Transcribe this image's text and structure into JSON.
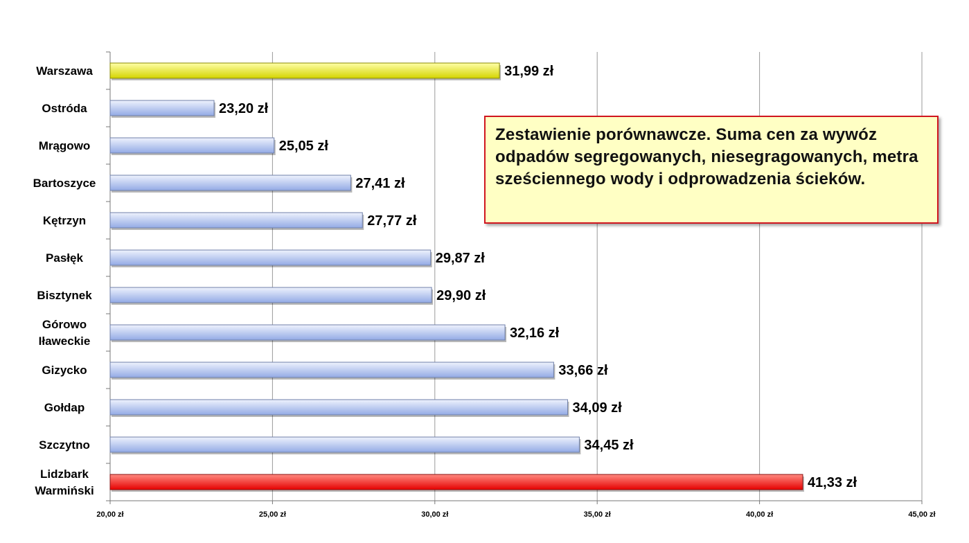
{
  "chart_data": {
    "type": "bar",
    "orientation": "horizontal",
    "categories": [
      "Warszawa",
      "Ostróda",
      "Mrągowo",
      "Bartoszyce",
      "Kętrzyn",
      "Pasłęk",
      "Bisztynek",
      "Górowo Iławeckie",
      "Gizycko",
      "Gołdap",
      "Szczytno",
      "Lidzbark Warmiński"
    ],
    "category_lines": [
      [
        "Warszawa"
      ],
      [
        "Ostróda"
      ],
      [
        "Mrągowo"
      ],
      [
        "Bartoszyce"
      ],
      [
        "Kętrzyn"
      ],
      [
        "Pasłęk"
      ],
      [
        "Bisztynek"
      ],
      [
        "Górowo",
        "Iławeckie"
      ],
      [
        "Gizycko"
      ],
      [
        "Gołdap"
      ],
      [
        "Szczytno"
      ],
      [
        "Lidzbark",
        "Warmiński"
      ]
    ],
    "values": [
      31.99,
      23.2,
      25.05,
      27.41,
      27.77,
      29.87,
      29.9,
      32.16,
      33.66,
      34.09,
      34.45,
      41.33
    ],
    "value_labels": [
      "31,99 zł",
      "23,20 zł",
      "25,05 zł",
      "27,41 zł",
      "27,77 zł",
      "29,87 zł",
      "29,90 zł",
      "32,16 zł",
      "33,66 zł",
      "34,09 zł",
      "34,45 zł",
      "41,33 zł"
    ],
    "bar_colors": [
      "yellow",
      "blue",
      "blue",
      "blue",
      "blue",
      "blue",
      "blue",
      "blue",
      "blue",
      "blue",
      "blue",
      "red"
    ],
    "xlim": [
      20,
      45
    ],
    "xticks": [
      20,
      25,
      30,
      35,
      40,
      45
    ],
    "xtick_labels": [
      "20,00 zł",
      "25,00 zł",
      "30,00 zł",
      "35,00 zł",
      "40,00 zł",
      "45,00 zł"
    ],
    "grid": "vertical",
    "title": "",
    "xlabel": "",
    "ylabel": ""
  },
  "colors": {
    "blue_light": "#eef2fd",
    "blue_dark": "#93aae5",
    "yellow_light": "#ffff9a",
    "yellow_dark": "#d8d800",
    "red_light": "#ff7a6e",
    "red_dark": "#ee0000",
    "grid": "#9a9a9a",
    "note_border": "#d0151f",
    "note_bg": "#ffffc4"
  },
  "note": {
    "text": "Zestawienie porównawcze. Suma cen za wywóz odpadów segregowanych, niesegragowanych, metra sześciennego wody i odprowadzenia ścieków."
  }
}
